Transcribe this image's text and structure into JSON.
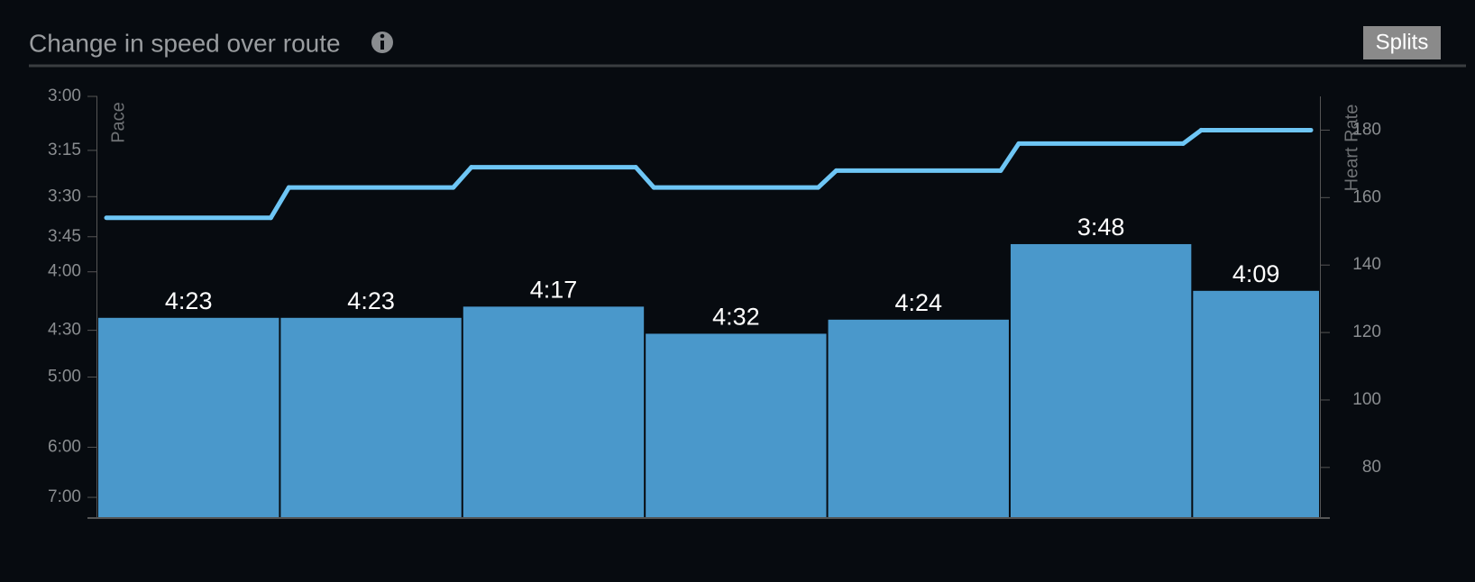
{
  "chart_data": {
    "type": "bar-line",
    "title": "Change in speed over route",
    "button": "Splits",
    "ylabel": "Pace",
    "y2label": "Heart Rate",
    "yscale": "reciprocal",
    "ylim": [
      451,
      180
    ],
    "yticks": [
      {
        "value": 180,
        "label": "3:00"
      },
      {
        "value": 195,
        "label": "3:15"
      },
      {
        "value": 210,
        "label": "3:30"
      },
      {
        "value": 225,
        "label": "3:45"
      },
      {
        "value": 240,
        "label": "4:00"
      },
      {
        "value": 270,
        "label": "4:30"
      },
      {
        "value": 300,
        "label": "5:00"
      },
      {
        "value": 360,
        "label": "6:00"
      },
      {
        "value": 420,
        "label": "7:00"
      }
    ],
    "y2lim": [
      65,
      190
    ],
    "y2ticks": [
      80,
      100,
      120,
      140,
      160,
      180
    ],
    "series": [
      {
        "name": "Pace",
        "type": "bar",
        "color": "#4a98cb",
        "values": [
          263,
          263,
          257,
          272,
          264,
          228,
          249
        ],
        "value_labels": [
          "4:23",
          "4:23",
          "4:17",
          "4:32",
          "4:24",
          "3:48",
          "4:09"
        ]
      },
      {
        "name": "Heart Rate",
        "type": "line",
        "axis": "y2",
        "color": "#6ec6f5",
        "values": [
          154,
          163,
          169,
          163,
          168,
          176,
          180
        ]
      }
    ]
  }
}
